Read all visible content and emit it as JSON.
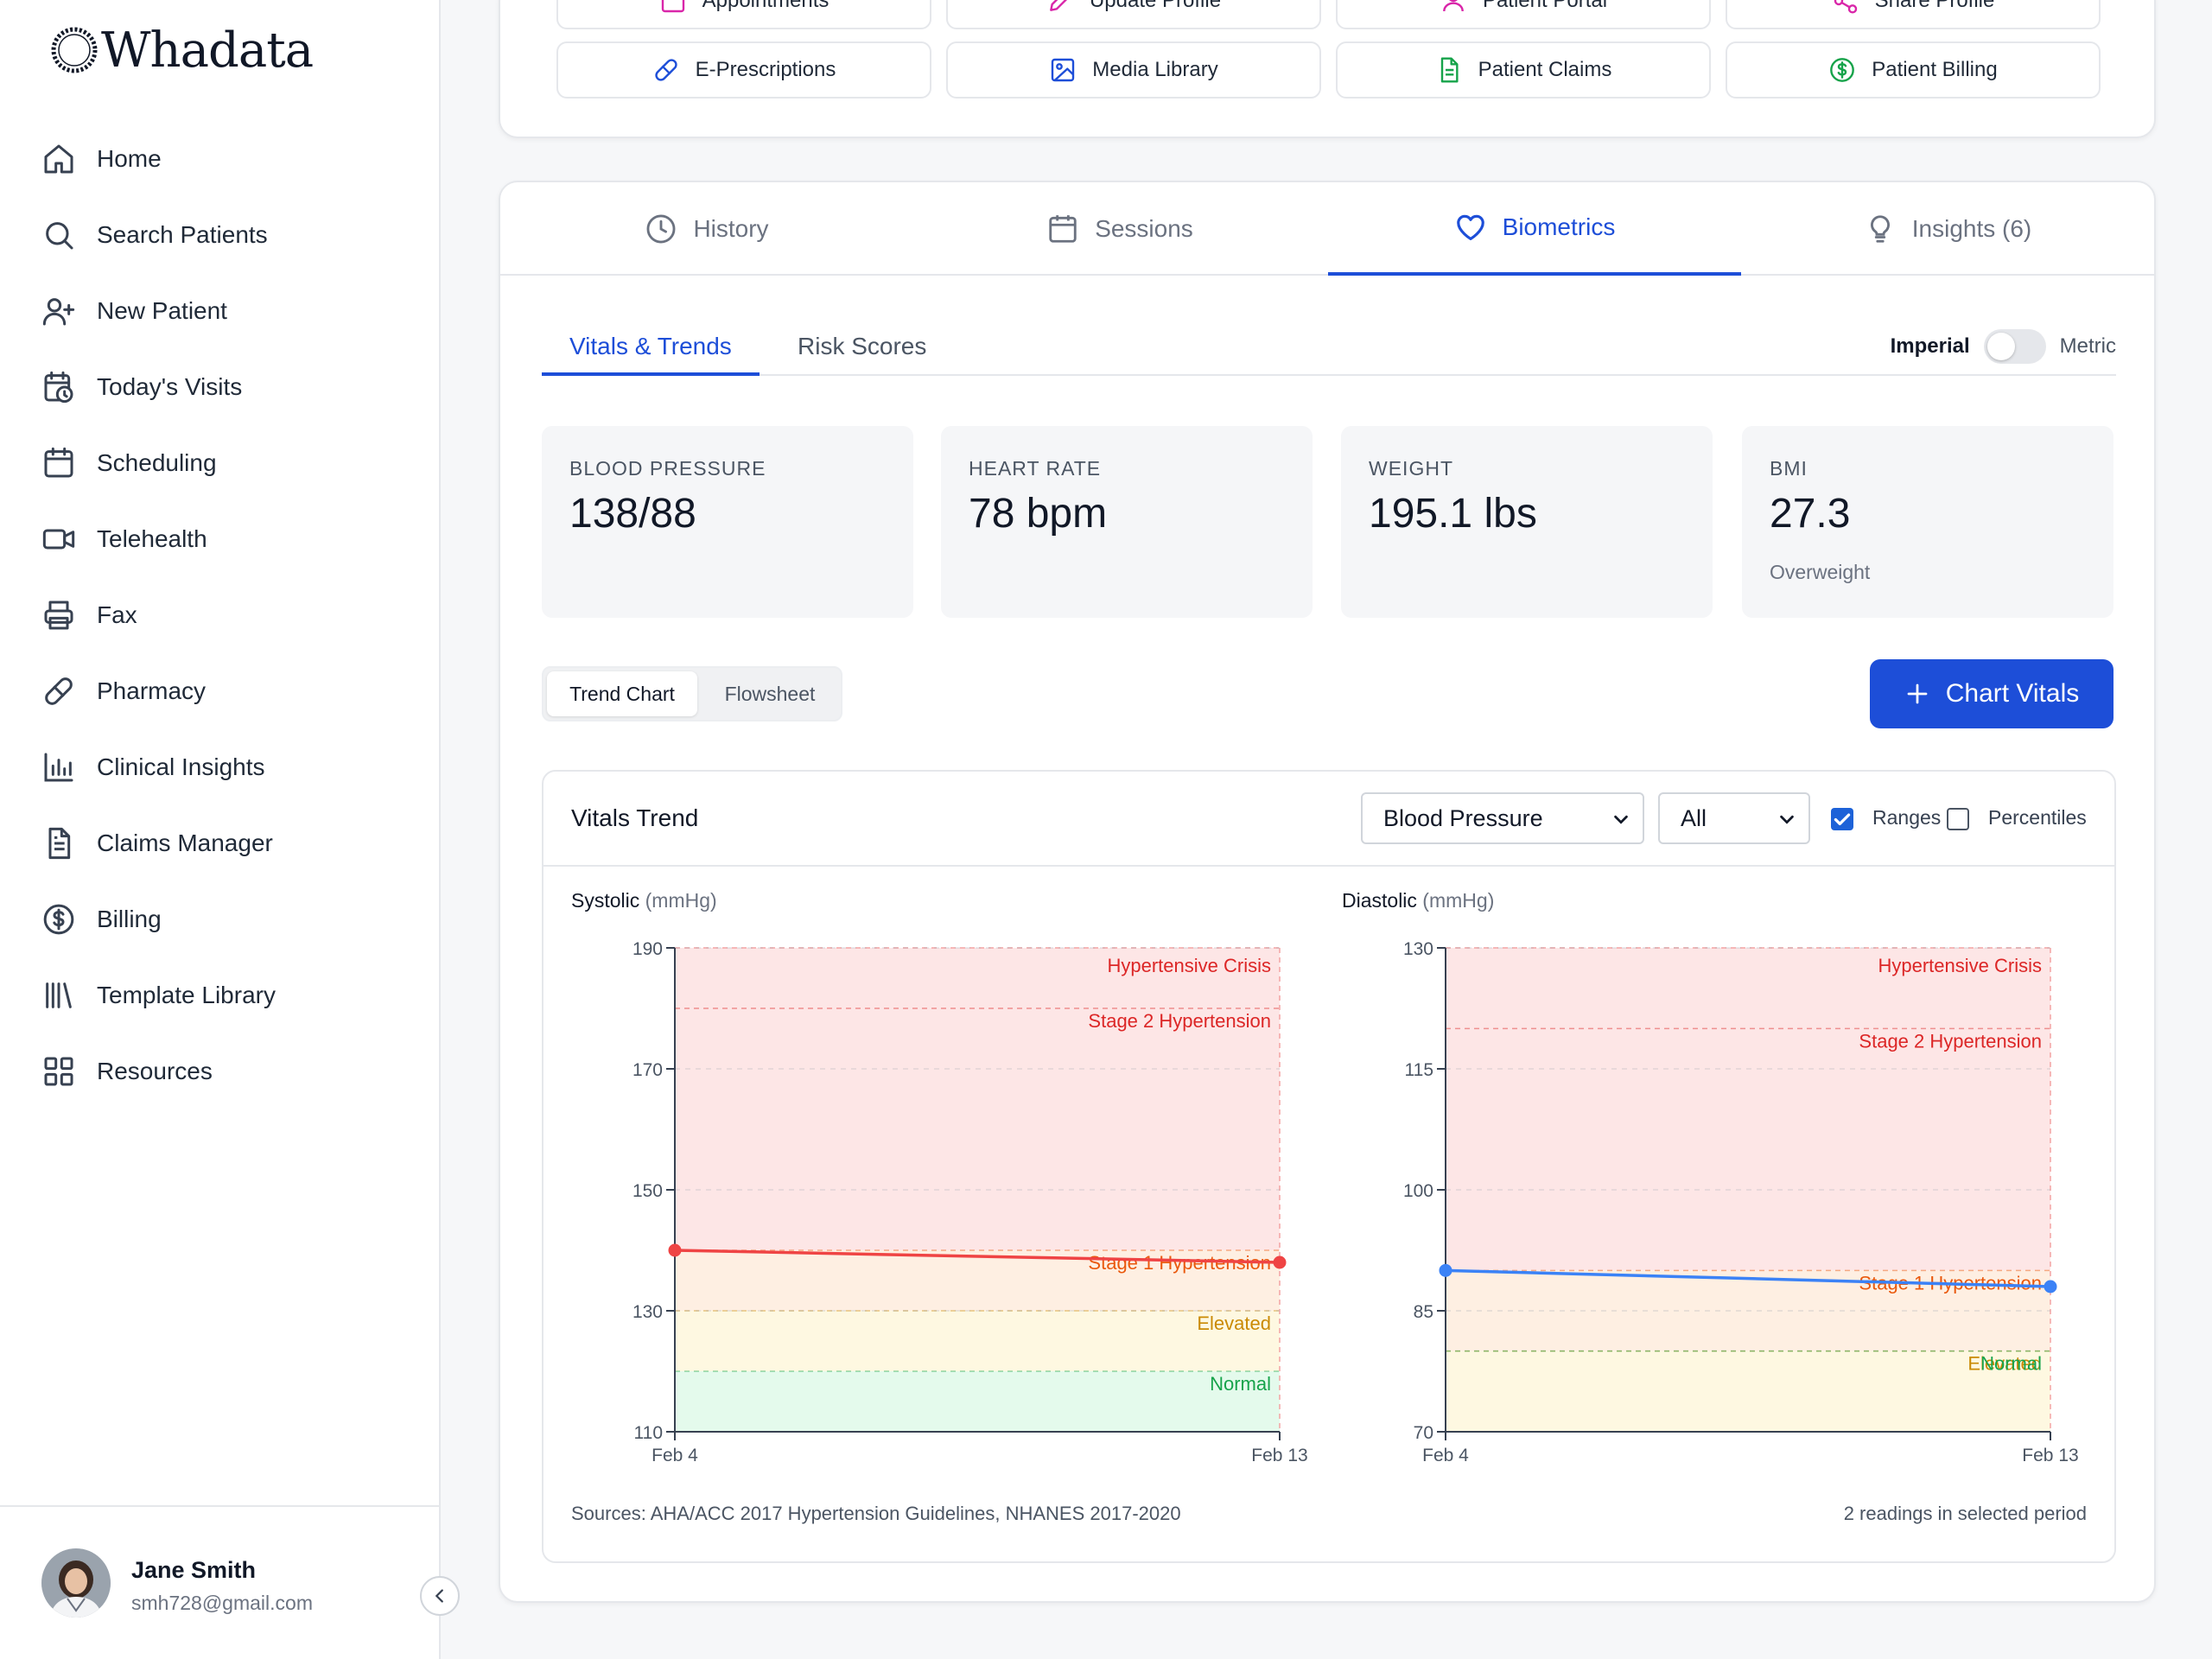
{
  "app": {
    "logo_text": "Whadata"
  },
  "sidebar": {
    "items": [
      {
        "label": "Home",
        "icon": "home-icon"
      },
      {
        "label": "Search Patients",
        "icon": "search-icon"
      },
      {
        "label": "New Patient",
        "icon": "user-plus-icon"
      },
      {
        "label": "Today's Visits",
        "icon": "calendar-clock-icon"
      },
      {
        "label": "Scheduling",
        "icon": "calendar-icon"
      },
      {
        "label": "Telehealth",
        "icon": "video-icon"
      },
      {
        "label": "Fax",
        "icon": "printer-icon"
      },
      {
        "label": "Pharmacy",
        "icon": "pill-icon"
      },
      {
        "label": "Clinical Insights",
        "icon": "bar-chart-icon"
      },
      {
        "label": "Claims Manager",
        "icon": "document-icon"
      },
      {
        "label": "Billing",
        "icon": "dollar-circle-icon"
      },
      {
        "label": "Template Library",
        "icon": "library-icon"
      },
      {
        "label": "Resources",
        "icon": "grid-icon"
      }
    ],
    "user": {
      "name": "Jane Smith",
      "email": "smh728@gmail.com"
    }
  },
  "quick_actions": {
    "row1": [
      {
        "label": "Appointments",
        "icon": "calendar-icon",
        "color": "#d926a9"
      },
      {
        "label": "Update Profile",
        "icon": "pencil-icon",
        "color": "#d926a9"
      },
      {
        "label": "Patient Portal",
        "icon": "user-icon",
        "color": "#d926a9"
      },
      {
        "label": "Share Profile",
        "icon": "share-icon",
        "color": "#d926a9"
      }
    ],
    "row2": [
      {
        "label": "E-Prescriptions",
        "icon": "pill-icon",
        "color": "#1d4ed8"
      },
      {
        "label": "Media Library",
        "icon": "image-icon",
        "color": "#1d4ed8"
      },
      {
        "label": "Patient Claims",
        "icon": "document-icon",
        "color": "#16a34a"
      },
      {
        "label": "Patient Billing",
        "icon": "dollar-circle-icon",
        "color": "#16a34a"
      }
    ]
  },
  "tabs": [
    {
      "label": "History",
      "icon": "clock-icon",
      "active": false
    },
    {
      "label": "Sessions",
      "icon": "calendar-icon",
      "active": false
    },
    {
      "label": "Biometrics",
      "icon": "heart-icon",
      "active": true
    },
    {
      "label": "Insights (6)",
      "icon": "lightbulb-icon",
      "active": false
    }
  ],
  "subtabs": [
    {
      "label": "Vitals & Trends",
      "active": true
    },
    {
      "label": "Risk Scores",
      "active": false
    }
  ],
  "units": {
    "imperial": "Imperial",
    "metric": "Metric",
    "metric_enabled": false
  },
  "stats": [
    {
      "label": "BLOOD PRESSURE",
      "value": "138/88",
      "sub": ""
    },
    {
      "label": "HEART RATE",
      "value": "78 bpm",
      "sub": ""
    },
    {
      "label": "WEIGHT",
      "value": "195.1 lbs",
      "sub": ""
    },
    {
      "label": "BMI",
      "value": "27.3",
      "sub": "Overweight"
    }
  ],
  "view_toggle": {
    "trend": "Trend Chart",
    "flowsheet": "Flowsheet"
  },
  "chart_button": {
    "label": "Chart Vitals"
  },
  "trend_panel": {
    "title": "Vitals Trend",
    "metric_select": "Blood Pressure",
    "range_select": "All",
    "ranges_label": "Ranges",
    "ranges_checked": true,
    "percentiles_label": "Percentiles",
    "percentiles_checked": false,
    "sources": "Sources: AHA/ACC 2017 Hypertension Guidelines, NHANES 2017-2020",
    "readings": "2 readings in selected period"
  },
  "chart_data": [
    {
      "type": "line",
      "title": "Systolic",
      "unit": "(mmHg)",
      "x": [
        "Feb 4",
        "Feb 13"
      ],
      "series": [
        {
          "values": [
            140,
            138
          ],
          "color": "#ef4444"
        }
      ],
      "ylim": [
        110,
        190
      ],
      "yticks": [
        110,
        130,
        150,
        170,
        190
      ],
      "bands": [
        {
          "label": "Hypertensive Crisis",
          "from": 180,
          "to": 190,
          "color": "#dc2626"
        },
        {
          "label": "Stage 2 Hypertension",
          "from": 140,
          "to": 180,
          "color": "#dc2626"
        },
        {
          "label": "Stage 1 Hypertension",
          "from": 130,
          "to": 140,
          "color": "#ea580c"
        },
        {
          "label": "Elevated",
          "from": 120,
          "to": 130,
          "color": "#ca8a04"
        },
        {
          "label": "Normal",
          "from": 110,
          "to": 120,
          "color": "#16a34a"
        }
      ]
    },
    {
      "type": "line",
      "title": "Diastolic",
      "unit": "(mmHg)",
      "x": [
        "Feb 4",
        "Feb 13"
      ],
      "series": [
        {
          "values": [
            90,
            88
          ],
          "color": "#3b82f6"
        }
      ],
      "ylim": [
        70,
        130
      ],
      "yticks": [
        70,
        85,
        100,
        115,
        130
      ],
      "bands": [
        {
          "label": "Hypertensive Crisis",
          "from": 120,
          "to": 130,
          "color": "#dc2626"
        },
        {
          "label": "Stage 2 Hypertension",
          "from": 90,
          "to": 120,
          "color": "#dc2626"
        },
        {
          "label": "Stage 1 Hypertension",
          "from": 80,
          "to": 90,
          "color": "#ea580c"
        },
        {
          "label": "Elevated",
          "from": 70,
          "to": 80,
          "color": "#ca8a04"
        },
        {
          "label": "Normal",
          "from": 70,
          "to": 80,
          "color": "#16a34a"
        }
      ]
    }
  ]
}
